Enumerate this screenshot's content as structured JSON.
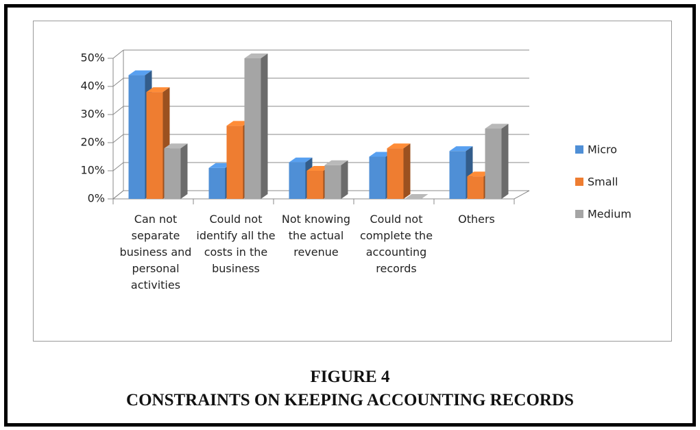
{
  "chart_data": {
    "type": "bar",
    "categories": [
      "Can not separate business and personal activities",
      "Could not identify all the costs in the business",
      "Not knowing the actual revenue",
      "Could not complete the accounting records",
      "Others"
    ],
    "series": [
      {
        "name": "Micro",
        "color": "#4f8fd6",
        "values": [
          44,
          11,
          13,
          15,
          17
        ]
      },
      {
        "name": "Small",
        "color": "#ee7d31",
        "values": [
          38,
          26,
          10,
          18,
          8
        ]
      },
      {
        "name": "Medium",
        "color": "#a5a5a5",
        "values": [
          18,
          50,
          12,
          0,
          25
        ]
      }
    ],
    "ylim": [
      0,
      50
    ],
    "yticks": [
      {
        "value": 0,
        "label": "0%"
      },
      {
        "value": 10,
        "label": "10%"
      },
      {
        "value": 20,
        "label": "20%"
      },
      {
        "value": 30,
        "label": "30%"
      },
      {
        "value": 40,
        "label": "40%"
      },
      {
        "value": 50,
        "label": "50%"
      }
    ],
    "grid": true,
    "legend": "right"
  },
  "caption": {
    "figure": "FIGURE 4",
    "title": "CONSTRAINTS ON KEEPING ACCOUNTING RECORDS"
  }
}
